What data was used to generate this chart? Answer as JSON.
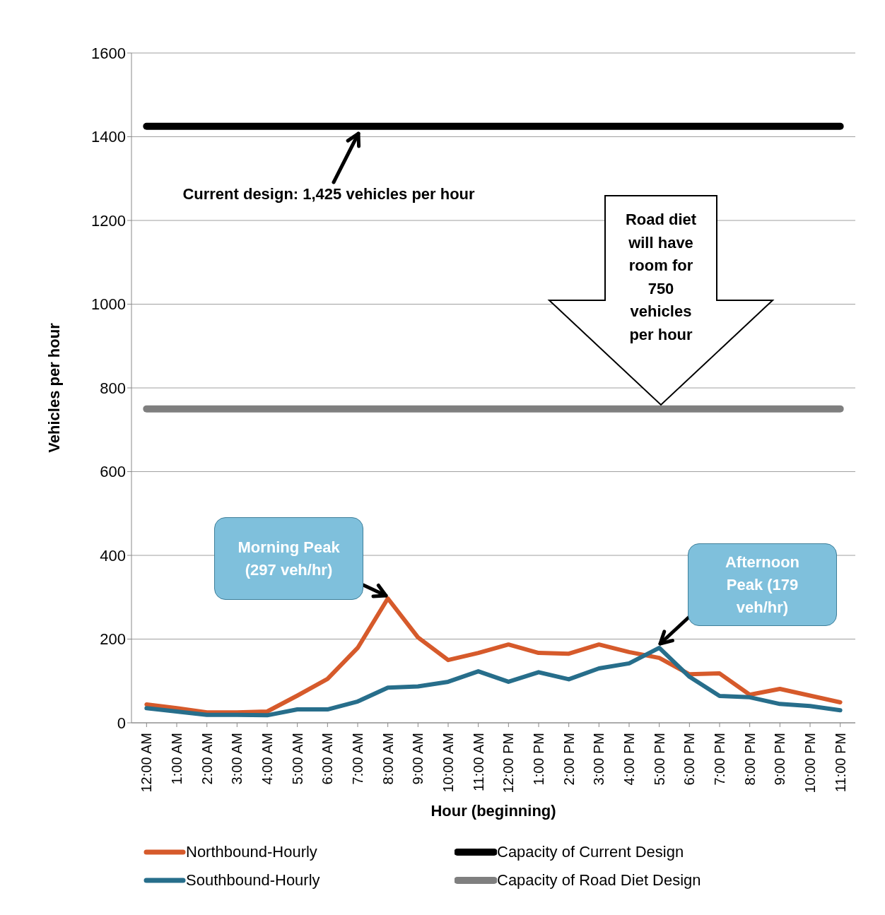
{
  "chart_data": {
    "type": "line",
    "xlabel": "Hour (beginning)",
    "ylabel": "Vehicles per hour",
    "categories": [
      "12:00 AM",
      "1:00 AM",
      "2:00 AM",
      "3:00 AM",
      "4:00 AM",
      "5:00 AM",
      "6:00 AM",
      "7:00 AM",
      "8:00 AM",
      "9:00 AM",
      "10:00 AM",
      "11:00 AM",
      "12:00 PM",
      "1:00 PM",
      "2:00 PM",
      "3:00 PM",
      "4:00 PM",
      "5:00 PM",
      "6:00 PM",
      "7:00 PM",
      "8:00 PM",
      "9:00 PM",
      "10:00 PM",
      "11:00 PM"
    ],
    "series": [
      {
        "name": "Northbound-Hourly",
        "color": "#d65a2b",
        "values": [
          44,
          35,
          25,
          25,
          27,
          65,
          105,
          179,
          297,
          204,
          150,
          167,
          187,
          167,
          165,
          187,
          169,
          155,
          116,
          118,
          67,
          81,
          65,
          49
        ]
      },
      {
        "name": "Southbound-Hourly",
        "color": "#276e8b",
        "values": [
          35,
          27,
          19,
          19,
          18,
          32,
          32,
          51,
          84,
          87,
          98,
          123,
          98,
          121,
          104,
          130,
          142,
          179,
          110,
          64,
          61,
          45,
          40,
          30
        ]
      },
      {
        "name": "Capacity of Current Design",
        "color": "#000000",
        "values": [
          1425,
          1425,
          1425,
          1425,
          1425,
          1425,
          1425,
          1425,
          1425,
          1425,
          1425,
          1425,
          1425,
          1425,
          1425,
          1425,
          1425,
          1425,
          1425,
          1425,
          1425,
          1425,
          1425,
          1425
        ]
      },
      {
        "name": "Capacity of Road Diet Design",
        "color": "#7f7f7f",
        "values": [
          750,
          750,
          750,
          750,
          750,
          750,
          750,
          750,
          750,
          750,
          750,
          750,
          750,
          750,
          750,
          750,
          750,
          750,
          750,
          750,
          750,
          750,
          750,
          750
        ]
      }
    ],
    "ylim": [
      0,
      1600
    ],
    "yticks": [
      0,
      200,
      400,
      600,
      800,
      1000,
      1200,
      1400,
      1600
    ],
    "grid": "y",
    "legend": "bottom",
    "marker": "none",
    "line_style": "solid",
    "annotations": [
      "Current design: 1,425 vehicles per hour",
      "Road diet will have room for 750 vehicles per hour",
      "Morning Peak (297 veh/hr)",
      "Afternoon Peak (179 veh/hr)"
    ]
  }
}
